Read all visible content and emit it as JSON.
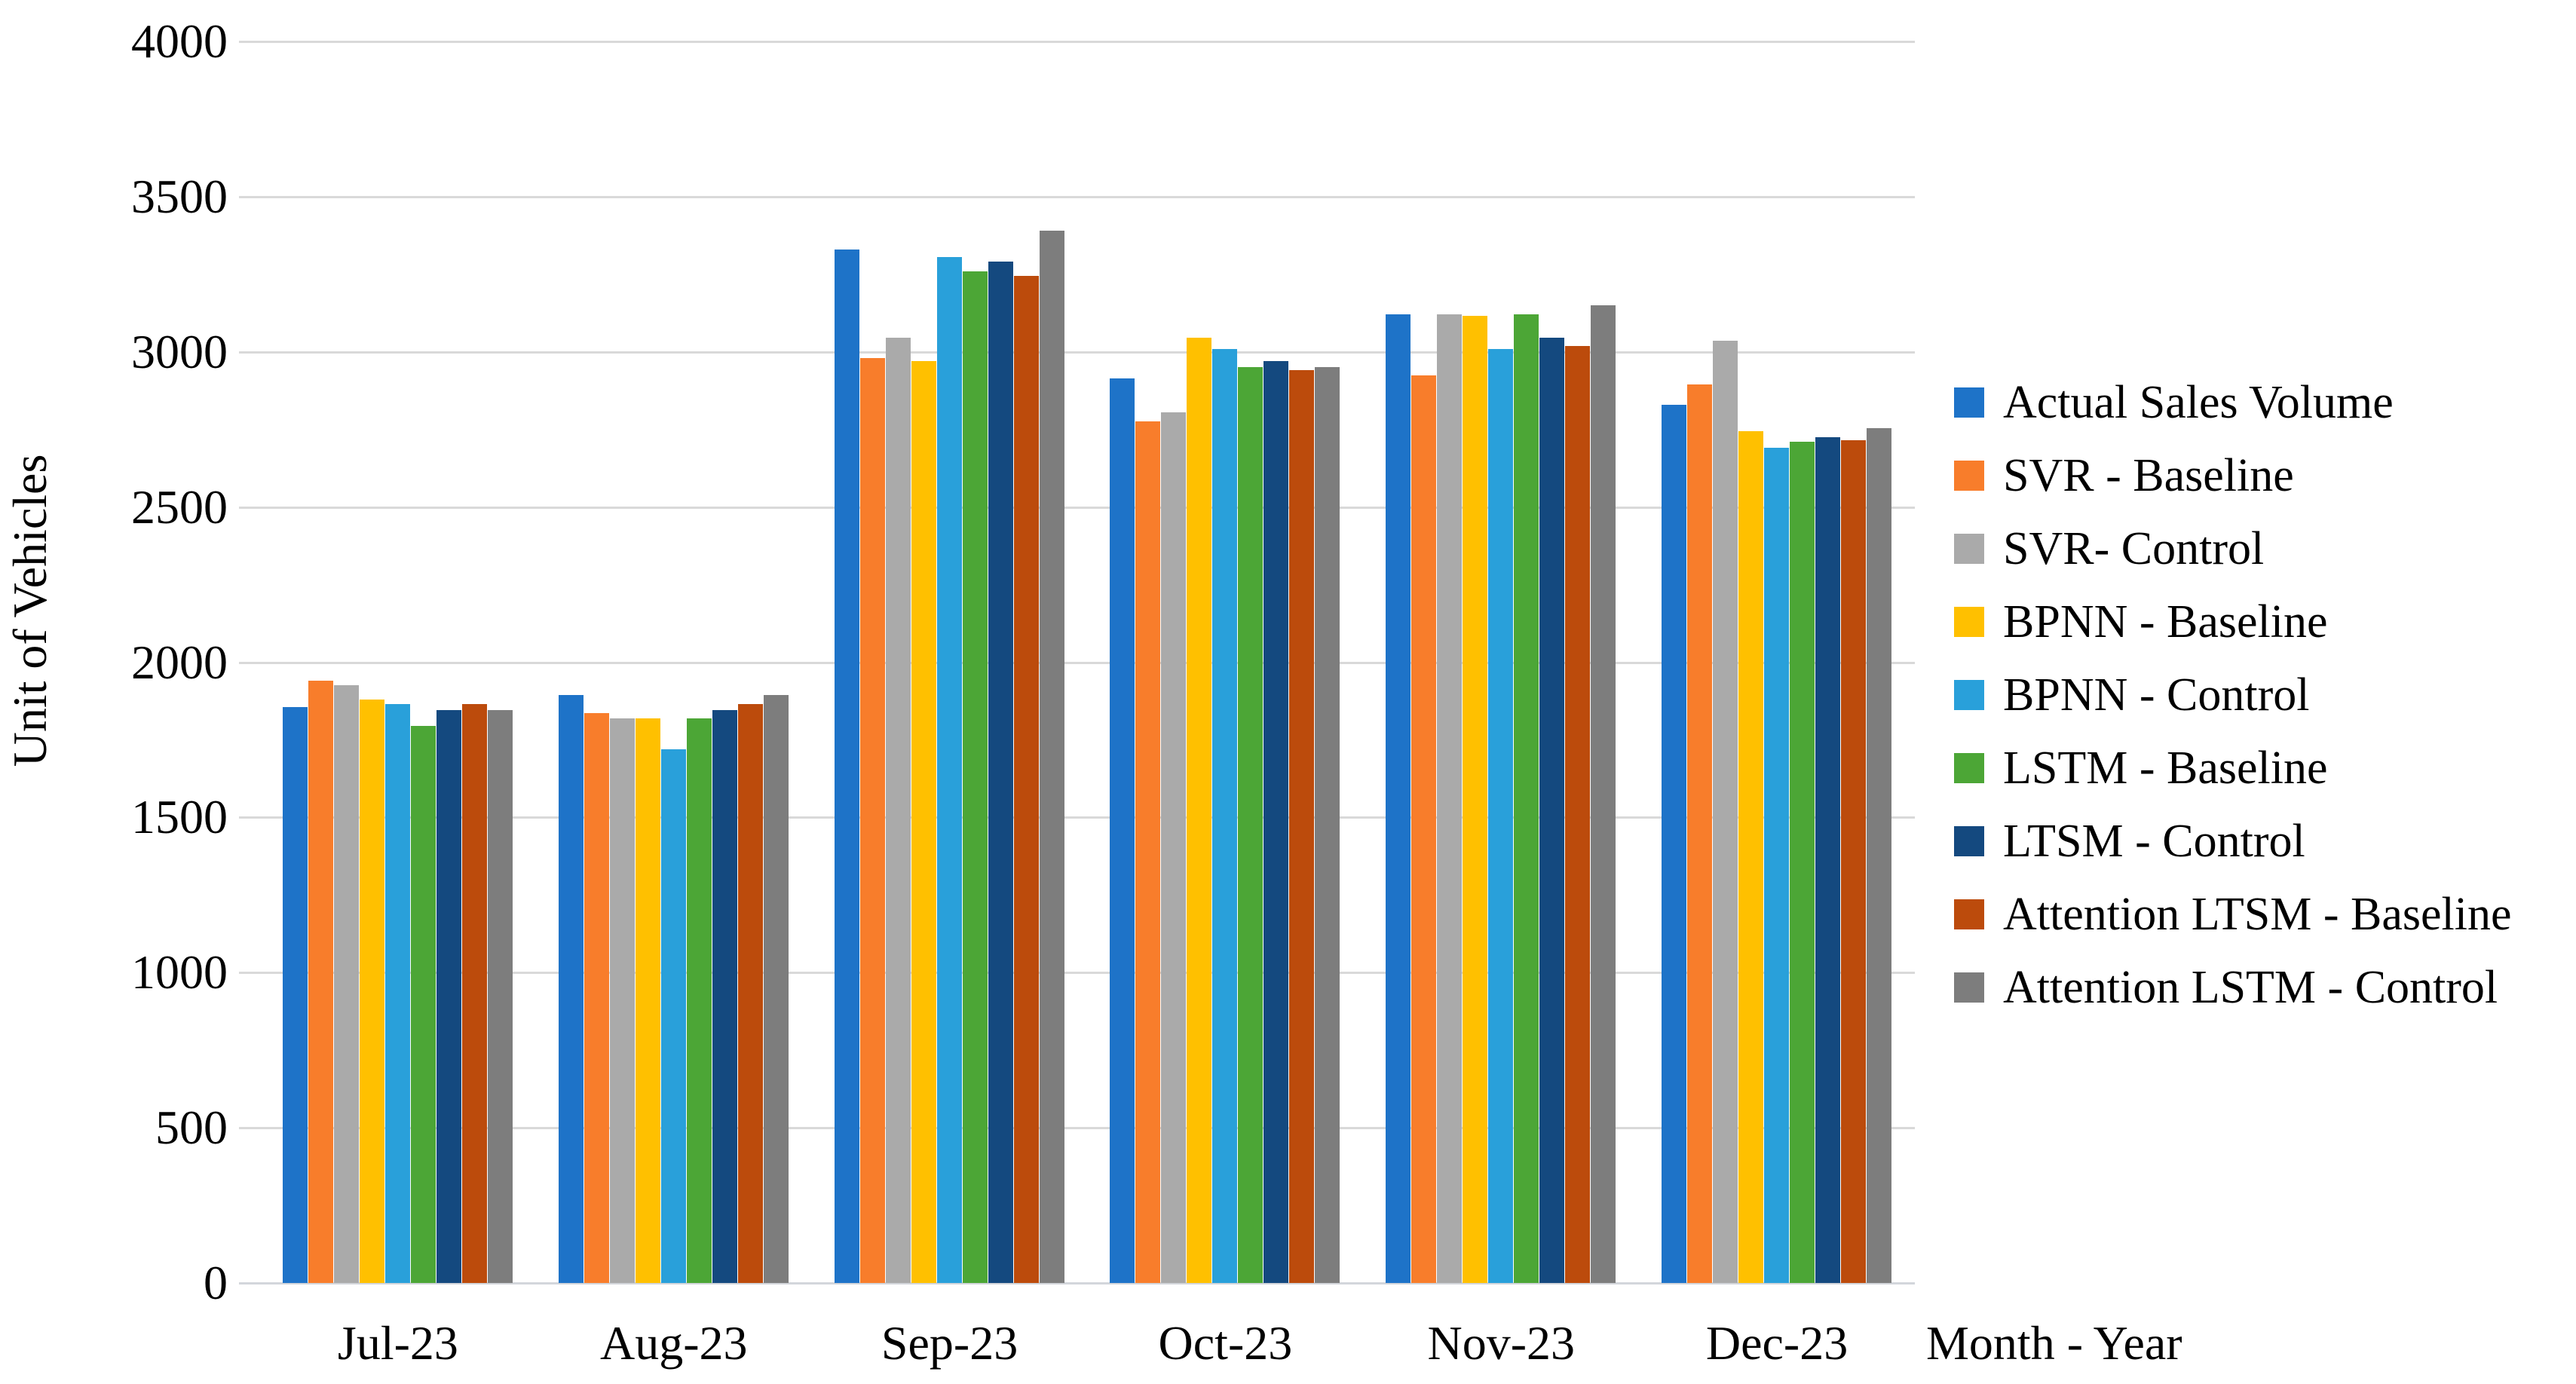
{
  "chart_data": {
    "type": "bar",
    "title": "",
    "x_axis_title": "Month - Year",
    "y_axis_title": "Unit of Vehicles",
    "categories": [
      "Jul-23",
      "Aug-23",
      "Sep-23",
      "Oct-23",
      "Nov-23",
      "Dec-23"
    ],
    "series": [
      {
        "name": "Actual Sales Volume",
        "color": "#1E73C8",
        "values": [
          1855,
          1895,
          3330,
          2915,
          3120,
          2830
        ]
      },
      {
        "name": "SVR - Baseline",
        "color": "#F87D2B",
        "values": [
          1940,
          1835,
          2980,
          2775,
          2925,
          2895
        ]
      },
      {
        "name": "SVR- Control",
        "color": "#AAAAAA",
        "values": [
          1925,
          1820,
          3045,
          2805,
          3120,
          3035
        ]
      },
      {
        "name": "BPNN - Baseline",
        "color": "#FFC000",
        "values": [
          1880,
          1820,
          2970,
          3045,
          3115,
          2745
        ]
      },
      {
        "name": "BPNN - Control",
        "color": "#29A0DA",
        "values": [
          1865,
          1720,
          3305,
          3010,
          3010,
          2690
        ]
      },
      {
        "name": "LSTM - Baseline",
        "color": "#4CA636",
        "values": [
          1795,
          1820,
          3260,
          2950,
          3120,
          2710
        ]
      },
      {
        "name": "LTSM - Control",
        "color": "#14497F",
        "values": [
          1845,
          1845,
          3290,
          2970,
          3045,
          2725
        ]
      },
      {
        "name": "Attention LTSM - Baseline",
        "color": "#BC4B0C",
        "values": [
          1865,
          1865,
          3245,
          2940,
          3020,
          2715
        ]
      },
      {
        "name": "Attention LSTM - Control",
        "color": "#7D7D7D",
        "values": [
          1845,
          1895,
          3390,
          2950,
          3150,
          2755
        ]
      }
    ],
    "ylim": [
      0,
      4000
    ],
    "y_tick_step": 500,
    "y_tick_labels": [
      "0",
      "500",
      "1000",
      "1500",
      "2000",
      "2500",
      "3000",
      "3500",
      "4000"
    ],
    "grid": "horizontal",
    "gridline_color": "#D9D9D9",
    "background": "#FFFFFF",
    "text_color": "#000000",
    "legend_position": "right"
  }
}
